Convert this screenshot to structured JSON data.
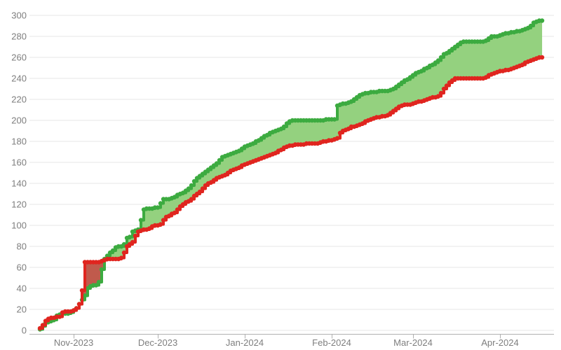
{
  "chart_data": {
    "type": "area",
    "subtype": "step-band-with-markers",
    "title": "",
    "legend": false,
    "grid": true,
    "background_color": "#ffffff",
    "grid_color": "#e7e7e7",
    "axis_line_color": "#b0b0b0",
    "tick_label_color": "#7e7e7e",
    "x_axis": {
      "start_date": "2023-10-20",
      "unit": "day",
      "num_days": 180,
      "tick_labels": [
        "Nov-2023",
        "Dec-2023",
        "Jan-2024",
        "Feb-2024",
        "Mar-2024",
        "Apr-2024"
      ],
      "tick_day_indices": [
        12,
        42,
        73,
        104,
        133,
        164
      ]
    },
    "y_axis": {
      "min": 0,
      "max": 300,
      "tick_step": 20,
      "tick_labels": [
        "0",
        "20",
        "40",
        "60",
        "80",
        "100",
        "120",
        "140",
        "160",
        "180",
        "200",
        "220",
        "240",
        "260",
        "280",
        "300"
      ]
    },
    "band_fill": {
      "upper_above_color": "#94d17f",
      "lower_above_color": "#c05a4c"
    },
    "series": [
      {
        "name": "upper-green",
        "color": "#3cab40",
        "values": [
          1,
          4,
          7,
          8,
          9,
          10,
          14,
          15,
          16,
          16,
          16,
          17,
          19,
          21,
          25,
          29,
          33,
          40,
          42,
          43,
          43,
          46,
          58,
          68,
          71,
          74,
          76,
          79,
          80,
          80,
          82,
          88,
          89,
          94,
          95,
          96,
          105,
          115,
          116,
          116,
          116,
          117,
          117,
          121,
          125,
          125,
          125,
          126,
          127,
          129,
          130,
          131,
          133,
          135,
          138,
          142,
          145,
          147,
          149,
          151,
          153,
          155,
          157,
          159,
          162,
          165,
          166,
          167,
          168,
          169,
          170,
          171,
          173,
          175,
          176,
          177,
          178,
          180,
          181,
          183,
          185,
          186,
          188,
          189,
          190,
          191,
          192,
          194,
          197,
          199,
          200,
          200,
          200,
          200,
          200,
          200,
          200,
          200,
          200,
          200,
          200,
          200,
          201,
          201,
          201,
          201,
          214,
          215,
          216,
          216,
          217,
          218,
          220,
          222,
          224,
          225,
          226,
          226,
          227,
          227,
          227,
          228,
          228,
          228,
          228,
          229,
          230,
          232,
          234,
          236,
          238,
          239,
          241,
          243,
          245,
          246,
          247,
          249,
          250,
          252,
          253,
          255,
          257,
          260,
          263,
          264,
          266,
          268,
          270,
          272,
          274,
          275,
          275,
          275,
          275,
          275,
          275,
          275,
          275,
          276,
          278,
          280,
          280,
          280,
          281,
          282,
          283,
          283,
          284,
          284,
          285,
          285,
          286,
          287,
          288,
          290,
          293,
          294,
          295,
          295
        ]
      },
      {
        "name": "lower-red",
        "color": "#e0251f",
        "values": [
          2,
          5,
          9,
          11,
          12,
          12,
          13,
          13,
          17,
          18,
          18,
          18,
          19,
          21,
          25,
          38,
          65,
          65,
          65,
          65,
          65,
          65,
          66,
          67,
          68,
          68,
          68,
          68,
          68,
          69,
          74,
          80,
          82,
          84,
          90,
          94,
          95,
          96,
          96,
          97,
          99,
          100,
          100,
          101,
          105,
          108,
          109,
          111,
          112,
          115,
          118,
          120,
          122,
          123,
          125,
          128,
          130,
          132,
          135,
          138,
          140,
          141,
          143,
          145,
          146,
          147,
          148,
          150,
          152,
          153,
          154,
          155,
          157,
          158,
          159,
          160,
          161,
          162,
          163,
          164,
          165,
          166,
          167,
          168,
          169,
          171,
          172,
          174,
          175,
          176,
          176,
          177,
          177,
          177,
          177,
          178,
          178,
          178,
          178,
          178,
          179,
          180,
          180,
          181,
          181,
          182,
          183,
          188,
          190,
          191,
          192,
          194,
          194,
          195,
          196,
          197,
          199,
          200,
          201,
          202,
          203,
          203,
          204,
          204,
          205,
          207,
          209,
          211,
          213,
          214,
          215,
          215,
          215,
          216,
          217,
          218,
          218,
          219,
          220,
          221,
          222,
          222,
          223,
          226,
          230,
          233,
          236,
          238,
          240,
          240,
          240,
          240,
          240,
          240,
          240,
          240,
          240,
          240,
          240,
          241,
          243,
          244,
          245,
          246,
          247,
          247,
          248,
          248,
          249,
          250,
          251,
          252,
          253,
          255,
          256,
          257,
          258,
          259,
          260,
          260
        ]
      }
    ]
  }
}
